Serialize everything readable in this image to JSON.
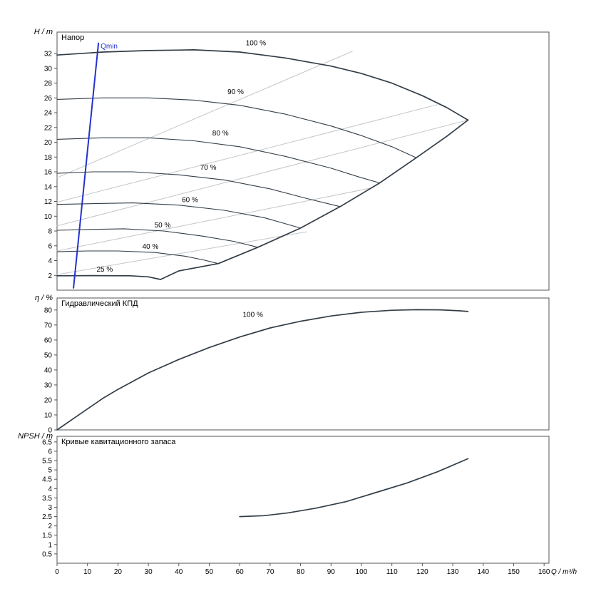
{
  "window": {
    "background": "#ffffff",
    "frame_color": "#555555",
    "text_color": "#000000"
  },
  "chart_data": [
    {
      "type": "line",
      "id": "head",
      "title": "Напор",
      "ylabel": "H / m",
      "xlabel": "Q / m³/h",
      "xlim": [
        0,
        161.6
      ],
      "ylim": [
        0,
        34.9
      ],
      "yticks": [
        2,
        4,
        6,
        8,
        10,
        12,
        14,
        16,
        18,
        20,
        22,
        24,
        26,
        28,
        30,
        32
      ],
      "series": [
        {
          "name": "affinity-line-1",
          "color": "#c3c6c8",
          "width": 1,
          "points": [
            [
              0,
              15.2
            ],
            [
              97,
              32.3
            ]
          ]
        },
        {
          "name": "affinity-line-2",
          "color": "#c3c6c8",
          "width": 1,
          "points": [
            [
              0,
              11.9
            ],
            [
              125,
              25.1
            ]
          ]
        },
        {
          "name": "affinity-line-3",
          "color": "#c3c6c8",
          "width": 1,
          "points": [
            [
              0,
              8.7
            ],
            [
              135,
              23.0
            ]
          ]
        },
        {
          "name": "affinity-line-4",
          "color": "#c3c6c8",
          "width": 1,
          "points": [
            [
              0,
              5.3
            ],
            [
              103,
              13.8
            ]
          ]
        },
        {
          "name": "affinity-line-5",
          "color": "#c3c6c8",
          "width": 1,
          "points": [
            [
              0,
              2.1
            ],
            [
              82,
              7.9
            ]
          ]
        },
        {
          "name": "100 %",
          "color": "#323d47",
          "width": 1.7,
          "points": [
            [
              0,
              31.8
            ],
            [
              15,
              32.2
            ],
            [
              30,
              32.4
            ],
            [
              45,
              32.5
            ],
            [
              60,
              32.2
            ],
            [
              75,
              31.4
            ],
            [
              90,
              30.3
            ],
            [
              100,
              29.3
            ],
            [
              110,
              28.0
            ],
            [
              120,
              26.3
            ],
            [
              128,
              24.7
            ],
            [
              135,
              23.0
            ]
          ]
        },
        {
          "name": "90 %",
          "color": "#323d47",
          "width": 1.1,
          "points": [
            [
              0,
              25.8
            ],
            [
              15,
              26.0
            ],
            [
              30,
              26.0
            ],
            [
              45,
              25.7
            ],
            [
              60,
              25.0
            ],
            [
              75,
              23.8
            ],
            [
              90,
              22.2
            ],
            [
              100,
              20.9
            ],
            [
              110,
              19.4
            ],
            [
              118,
              17.9
            ]
          ]
        },
        {
          "name": "80 %",
          "color": "#323d47",
          "width": 1.1,
          "points": [
            [
              0,
              20.4
            ],
            [
              15,
              20.6
            ],
            [
              30,
              20.6
            ],
            [
              45,
              20.2
            ],
            [
              60,
              19.4
            ],
            [
              75,
              18.1
            ],
            [
              90,
              16.5
            ],
            [
              100,
              15.2
            ],
            [
              106,
              14.5
            ]
          ]
        },
        {
          "name": "70 %",
          "color": "#323d47",
          "width": 1.1,
          "points": [
            [
              0,
              15.8
            ],
            [
              12,
              16.0
            ],
            [
              25,
              16.0
            ],
            [
              40,
              15.6
            ],
            [
              55,
              14.9
            ],
            [
              70,
              13.7
            ],
            [
              82,
              12.4
            ],
            [
              93,
              11.3
            ]
          ]
        },
        {
          "name": "60 %",
          "color": "#323d47",
          "width": 1.1,
          "points": [
            [
              0,
              11.6
            ],
            [
              12,
              11.7
            ],
            [
              25,
              11.8
            ],
            [
              40,
              11.5
            ],
            [
              55,
              10.8
            ],
            [
              68,
              9.8
            ],
            [
              80,
              8.4
            ]
          ]
        },
        {
          "name": "50 %",
          "color": "#323d47",
          "width": 1.1,
          "points": [
            [
              0,
              8.1
            ],
            [
              10,
              8.2
            ],
            [
              22,
              8.3
            ],
            [
              35,
              8.0
            ],
            [
              48,
              7.3
            ],
            [
              58,
              6.6
            ],
            [
              66,
              5.8
            ]
          ]
        },
        {
          "name": "40 %",
          "color": "#323d47",
          "width": 1.1,
          "points": [
            [
              0,
              5.2
            ],
            [
              10,
              5.3
            ],
            [
              20,
              5.3
            ],
            [
              32,
              5.1
            ],
            [
              42,
              4.6
            ],
            [
              48,
              4.1
            ],
            [
              53,
              3.6
            ]
          ]
        },
        {
          "name": "25 %",
          "color": "#323d47",
          "width": 1.7,
          "points": [
            [
              0,
              1.95
            ],
            [
              12,
              1.97
            ],
            [
              24,
              1.95
            ],
            [
              30,
              1.8
            ],
            [
              34,
              1.45
            ]
          ]
        },
        {
          "name": "max-flow-limit",
          "color": "#323d47",
          "width": 1.7,
          "points": [
            [
              34,
              1.45
            ],
            [
              40,
              2.6
            ],
            [
              53,
              3.6
            ],
            [
              66,
              5.8
            ],
            [
              80,
              8.4
            ],
            [
              93,
              11.3
            ],
            [
              106,
              14.5
            ],
            [
              118,
              17.9
            ],
            [
              128,
              20.8
            ],
            [
              135,
              23.0
            ]
          ]
        },
        {
          "name": "Qmin",
          "color": "#2433cc",
          "width": 2,
          "points": [
            [
              5.4,
              0.3
            ],
            [
              13.6,
              33.4
            ]
          ]
        }
      ],
      "labels": [
        {
          "text": "100 %",
          "x": 62,
          "y": 33.1,
          "color": "#000000"
        },
        {
          "text": "90 %",
          "x": 56,
          "y": 26.5,
          "color": "#000000"
        },
        {
          "text": "80 %",
          "x": 51,
          "y": 20.9,
          "color": "#000000"
        },
        {
          "text": "70 %",
          "x": 47,
          "y": 16.3,
          "color": "#000000"
        },
        {
          "text": "60 %",
          "x": 41,
          "y": 11.9,
          "color": "#000000"
        },
        {
          "text": "50 %",
          "x": 32,
          "y": 8.5,
          "color": "#000000"
        },
        {
          "text": "40 %",
          "x": 28,
          "y": 5.6,
          "color": "#000000"
        },
        {
          "text": "25 %",
          "x": 13,
          "y": 2.5,
          "color": "#000000"
        },
        {
          "text": "Qmin",
          "x": 14.3,
          "y": 32.7,
          "color": "#2433cc"
        }
      ]
    },
    {
      "type": "line",
      "id": "efficiency",
      "title": "Гидравлический КПД",
      "ylabel": "η / %",
      "xlabel": "Q / m³/h",
      "xlim": [
        0,
        161.6
      ],
      "ylim": [
        0,
        88
      ],
      "yticks": [
        0,
        10,
        20,
        30,
        40,
        50,
        60,
        70,
        80
      ],
      "series": [
        {
          "name": "100 %",
          "color": "#323d47",
          "width": 1.7,
          "points": [
            [
              0,
              0
            ],
            [
              5,
              7
            ],
            [
              10,
              14
            ],
            [
              15,
              21
            ],
            [
              20,
              27
            ],
            [
              30,
              38
            ],
            [
              40,
              47
            ],
            [
              50,
              55
            ],
            [
              60,
              62
            ],
            [
              70,
              68
            ],
            [
              80,
              72.5
            ],
            [
              90,
              76
            ],
            [
              100,
              78.5
            ],
            [
              110,
              79.8
            ],
            [
              118,
              80.2
            ],
            [
              126,
              80.1
            ],
            [
              132,
              79.5
            ],
            [
              135,
              79
            ]
          ]
        }
      ],
      "labels": [
        {
          "text": "100 %",
          "x": 61,
          "y": 75.5,
          "color": "#000000"
        }
      ]
    },
    {
      "type": "line",
      "id": "npsh",
      "title": "Кривые кавитационного запаса",
      "ylabel": "NPSH / m",
      "xlabel": "Q / m³/h",
      "xlim": [
        0,
        161.6
      ],
      "ylim": [
        0,
        6.8
      ],
      "yticks": [
        0.5,
        1,
        1.5,
        2,
        2.5,
        3,
        3.5,
        4,
        4.5,
        5,
        5.5,
        6,
        6.5
      ],
      "xticks": [
        0,
        10,
        20,
        30,
        40,
        50,
        60,
        70,
        80,
        90,
        100,
        110,
        120,
        130,
        140,
        150,
        160
      ],
      "series": [
        {
          "name": "NPSH",
          "color": "#323d47",
          "width": 1.7,
          "points": [
            [
              60,
              2.5
            ],
            [
              68,
              2.55
            ],
            [
              76,
              2.7
            ],
            [
              85,
              2.95
            ],
            [
              95,
              3.3
            ],
            [
              105,
              3.8
            ],
            [
              115,
              4.3
            ],
            [
              125,
              4.9
            ],
            [
              135,
              5.6
            ]
          ]
        }
      ],
      "labels": []
    }
  ]
}
